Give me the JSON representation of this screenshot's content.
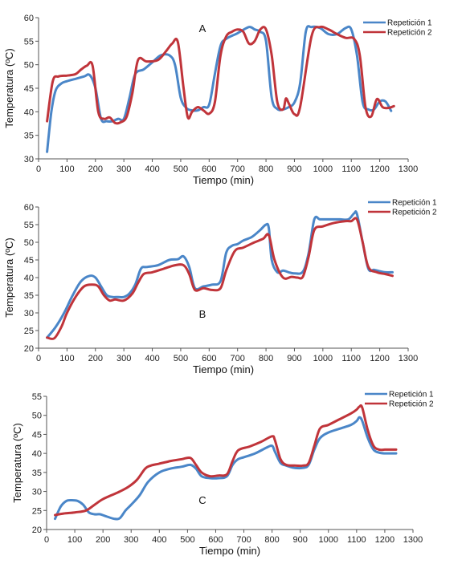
{
  "colors": {
    "series1": "#4a86c8",
    "series2": "#c0343a",
    "axis": "#555555"
  },
  "chart_data": [
    {
      "type": "line",
      "panel_label": "A",
      "xlabel": "Tiempo (min)",
      "ylabel": "Temperatura (ºC)",
      "xlim": [
        0,
        1300
      ],
      "ylim": [
        30,
        60
      ],
      "xticks": [
        0,
        100,
        200,
        300,
        400,
        500,
        600,
        700,
        800,
        900,
        1000,
        1100,
        1200,
        1300
      ],
      "yticks": [
        30,
        35,
        40,
        45,
        50,
        55,
        60
      ],
      "legend_position": "top-right",
      "series": [
        {
          "name": "Repetición 1",
          "x": [
            30,
            45,
            60,
            80,
            100,
            130,
            160,
            180,
            200,
            220,
            240,
            260,
            280,
            300,
            320,
            340,
            370,
            400,
            430,
            460,
            480,
            500,
            520,
            540,
            560,
            580,
            600,
            620,
            640,
            660,
            700,
            740,
            760,
            780,
            800,
            820,
            840,
            860,
            880,
            900,
            920,
            940,
            960,
            990,
            1020,
            1050,
            1080,
            1100,
            1120,
            1140,
            1160,
            1180,
            1200,
            1220,
            1240
          ],
          "y": [
            31.5,
            40,
            44.5,
            46,
            46.5,
            47,
            47.5,
            47.8,
            45,
            38.5,
            38,
            38,
            38.5,
            38.5,
            43,
            48,
            49,
            50.5,
            52,
            52,
            50,
            43,
            40.8,
            40.3,
            40.3,
            41,
            41.5,
            48,
            54,
            55.5,
            56.7,
            58,
            57.5,
            57,
            55,
            43,
            40.6,
            40.5,
            41,
            42,
            46,
            57,
            58,
            57.8,
            56.5,
            56.5,
            57.8,
            57.5,
            52,
            42,
            40.5,
            40.5,
            42.2,
            42.2,
            40.2
          ]
        },
        {
          "name": "Repetición 2",
          "x": [
            30,
            50,
            70,
            100,
            130,
            150,
            170,
            190,
            210,
            230,
            250,
            270,
            290,
            310,
            330,
            350,
            380,
            420,
            450,
            470,
            490,
            510,
            525,
            540,
            560,
            580,
            600,
            620,
            640,
            660,
            680,
            700,
            720,
            740,
            760,
            780,
            800,
            820,
            840,
            860,
            870,
            880,
            900,
            920,
            960,
            990,
            1020,
            1050,
            1080,
            1110,
            1130,
            1150,
            1170,
            1190,
            1210,
            1230,
            1250
          ],
          "y": [
            38,
            46.5,
            47.5,
            47.7,
            48,
            49,
            49.8,
            49.8,
            40,
            38.5,
            38.8,
            37.6,
            37.8,
            39,
            44,
            51,
            50.7,
            51,
            53,
            54.5,
            54.8,
            45,
            38.8,
            40,
            41,
            40.3,
            39.6,
            42,
            52,
            56,
            57,
            57.5,
            57,
            54.5,
            55,
            57.5,
            57.5,
            52,
            42,
            40.5,
            42.8,
            41.8,
            39.5,
            41,
            56,
            58,
            57.5,
            56.5,
            55.7,
            55.5,
            52,
            41,
            39,
            42.7,
            41,
            40.8,
            41.2
          ]
        }
      ]
    },
    {
      "type": "line",
      "panel_label": "B",
      "xlabel": "Tiempo (min)",
      "ylabel": "Temperatura (ºC)",
      "xlim": [
        0,
        1300
      ],
      "ylim": [
        20,
        60
      ],
      "xticks": [
        0,
        100,
        200,
        300,
        400,
        500,
        600,
        700,
        800,
        900,
        1000,
        1100,
        1200,
        1300
      ],
      "yticks": [
        20,
        25,
        30,
        35,
        40,
        45,
        50,
        55,
        60
      ],
      "legend_position": "top-right",
      "series": [
        {
          "name": "Repetición 1",
          "x": [
            30,
            60,
            90,
            120,
            150,
            180,
            200,
            220,
            240,
            260,
            280,
            300,
            320,
            340,
            360,
            380,
            420,
            460,
            490,
            510,
            530,
            550,
            580,
            610,
            640,
            660,
            680,
            700,
            720,
            750,
            780,
            800,
            810,
            820,
            840,
            860,
            880,
            900,
            930,
            950,
            970,
            990,
            1020,
            1060,
            1090,
            1110,
            1120,
            1140,
            1160,
            1180,
            1200,
            1220,
            1245
          ],
          "y": [
            23,
            26,
            30,
            35,
            39,
            40.5,
            40,
            37.5,
            35,
            34.5,
            34.5,
            34.5,
            35.5,
            38,
            42.5,
            43,
            43.5,
            45,
            45.2,
            46,
            43,
            37,
            37.5,
            38,
            39,
            47,
            49,
            49.5,
            50.5,
            51.5,
            53.5,
            55,
            54,
            45,
            41.5,
            42,
            41.5,
            41.2,
            41.7,
            47,
            56.5,
            56.5,
            56.5,
            56.5,
            56.5,
            58.2,
            58,
            50,
            42.5,
            42.2,
            41.8,
            41.5,
            41.5
          ]
        },
        {
          "name": "Repetición 2",
          "x": [
            30,
            55,
            80,
            100,
            130,
            160,
            190,
            210,
            230,
            250,
            270,
            300,
            330,
            350,
            370,
            400,
            440,
            480,
            510,
            530,
            550,
            580,
            610,
            640,
            660,
            690,
            720,
            760,
            790,
            810,
            830,
            860,
            890,
            910,
            930,
            950,
            970,
            1000,
            1040,
            1080,
            1100,
            1120,
            1140,
            1160,
            1190,
            1220,
            1245
          ],
          "y": [
            23,
            22.8,
            26,
            30,
            34.5,
            37.5,
            38,
            37.5,
            35,
            33.5,
            33.8,
            33.5,
            35.5,
            38.5,
            41,
            41.5,
            42.5,
            43.5,
            43.5,
            41,
            36.5,
            37,
            36.5,
            37,
            42,
            47.5,
            48.5,
            50,
            51,
            52,
            45,
            40,
            40.2,
            40,
            40.3,
            46,
            53.5,
            54.5,
            55.5,
            56,
            56,
            56.5,
            50,
            43,
            41.5,
            41,
            40.5
          ]
        }
      ]
    },
    {
      "type": "line",
      "panel_label": "C",
      "xlabel": "Tiempo (min)",
      "ylabel": "Temperatura (ºC)",
      "xlim": [
        0,
        1300
      ],
      "ylim": [
        20,
        55
      ],
      "xticks": [
        0,
        100,
        200,
        300,
        400,
        500,
        600,
        700,
        800,
        900,
        1000,
        1100,
        1200,
        1300
      ],
      "yticks": [
        20,
        25,
        30,
        35,
        40,
        45,
        50,
        55
      ],
      "legend_position": "top-right",
      "series": [
        {
          "name": "Repetición 1",
          "x": [
            30,
            50,
            70,
            90,
            110,
            130,
            150,
            170,
            190,
            210,
            240,
            260,
            280,
            300,
            330,
            360,
            400,
            440,
            480,
            510,
            530,
            550,
            580,
            610,
            640,
            660,
            680,
            700,
            740,
            780,
            800,
            810,
            830,
            850,
            880,
            910,
            930,
            950,
            970,
            1000,
            1040,
            1080,
            1100,
            1110,
            1120,
            1140,
            1160,
            1180,
            1200,
            1220,
            1240
          ],
          "y": [
            22.8,
            26,
            27.5,
            27.7,
            27.5,
            26.5,
            24.5,
            24,
            24,
            23.5,
            22.8,
            23,
            25,
            26.5,
            29,
            32.5,
            35,
            36,
            36.5,
            37,
            36,
            34,
            33.5,
            33.5,
            34,
            37,
            38.5,
            39,
            40,
            41.5,
            42,
            40.5,
            37.5,
            36.8,
            36.2,
            36.2,
            37,
            41,
            44,
            45.5,
            46.5,
            47.5,
            48.5,
            49.5,
            48.5,
            44,
            41,
            40.2,
            40,
            40,
            40
          ]
        },
        {
          "name": "Repetición 2",
          "x": [
            30,
            60,
            100,
            140,
            170,
            200,
            230,
            260,
            290,
            320,
            350,
            370,
            400,
            440,
            480,
            510,
            530,
            550,
            580,
            610,
            640,
            660,
            680,
            720,
            760,
            800,
            810,
            830,
            850,
            880,
            910,
            930,
            950,
            970,
            1000,
            1040,
            1080,
            1100,
            1110,
            1120,
            1140,
            1160,
            1180,
            1200,
            1220,
            1240
          ],
          "y": [
            23.8,
            24.2,
            24.5,
            25,
            26.5,
            28,
            29,
            30,
            31.2,
            33,
            36,
            36.8,
            37.3,
            38,
            38.5,
            38.8,
            37,
            35,
            34,
            34.2,
            34.5,
            38,
            40.8,
            41.8,
            43,
            44.5,
            43.5,
            38.5,
            37,
            36.8,
            36.8,
            37.5,
            42,
            46.5,
            47.5,
            49,
            50.5,
            51.5,
            52.3,
            52,
            46,
            42,
            41,
            41,
            41,
            41
          ]
        }
      ]
    }
  ]
}
